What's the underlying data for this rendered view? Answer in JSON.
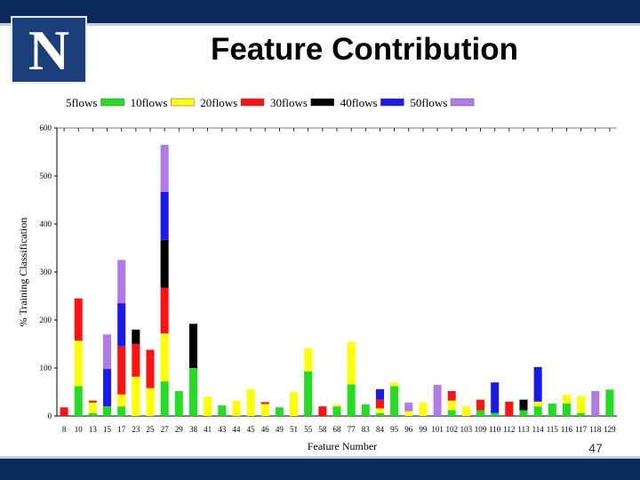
{
  "slide": {
    "title": "Feature Contribution",
    "logo_text": "N",
    "page_number": "47"
  },
  "colors": {
    "header_bar": "#0b2a5b",
    "logo_bg": "#1b3f7a"
  },
  "chart_data": {
    "type": "bar",
    "stacked": true,
    "xlabel": "Feature Number",
    "ylabel": "% Training Classification",
    "ylim": [
      0,
      600
    ],
    "yticks": [
      0,
      100,
      200,
      300,
      400,
      500,
      600
    ],
    "legend_position": "top",
    "categories": [
      "8",
      "10",
      "13",
      "15",
      "17",
      "23",
      "25",
      "27",
      "29",
      "38",
      "41",
      "43",
      "44",
      "45",
      "46",
      "49",
      "51",
      "55",
      "58",
      "68",
      "77",
      "83",
      "84",
      "95",
      "96",
      "99",
      "101",
      "102",
      "103",
      "109",
      "110",
      "112",
      "113",
      "114",
      "115",
      "116",
      "117",
      "118",
      "129"
    ],
    "series": [
      {
        "name": "5flows",
        "color": "#22dd22",
        "values": [
          0,
          62,
          6,
          20,
          20,
          0,
          0,
          72,
          52,
          100,
          0,
          22,
          0,
          0,
          0,
          18,
          0,
          93,
          0,
          20,
          66,
          24,
          6,
          62,
          0,
          0,
          0,
          12,
          0,
          12,
          6,
          0,
          12,
          20,
          26,
          26,
          6,
          0,
          55
        ]
      },
      {
        "name": "10flows",
        "color": "#ffff00",
        "values": [
          0,
          95,
          22,
          0,
          25,
          82,
          58,
          100,
          0,
          0,
          40,
          0,
          32,
          56,
          25,
          0,
          50,
          48,
          0,
          4,
          88,
          0,
          10,
          8,
          10,
          28,
          0,
          20,
          20,
          0,
          0,
          0,
          0,
          10,
          0,
          18,
          36,
          0,
          0
        ]
      },
      {
        "name": "20flows",
        "color": "#ff1111",
        "values": [
          18,
          88,
          4,
          0,
          100,
          68,
          80,
          95,
          0,
          0,
          0,
          0,
          0,
          0,
          4,
          0,
          0,
          0,
          20,
          0,
          0,
          0,
          18,
          0,
          0,
          0,
          0,
          20,
          0,
          22,
          0,
          30,
          0,
          0,
          0,
          0,
          0,
          0,
          0
        ]
      },
      {
        "name": "30flows",
        "color": "#000000",
        "values": [
          0,
          0,
          0,
          0,
          0,
          30,
          0,
          100,
          0,
          92,
          0,
          0,
          0,
          0,
          0,
          0,
          0,
          0,
          0,
          0,
          0,
          0,
          0,
          0,
          0,
          0,
          0,
          0,
          0,
          0,
          0,
          0,
          22,
          0,
          0,
          0,
          0,
          0,
          0
        ]
      },
      {
        "name": "40flows",
        "color": "#1a1aee",
        "values": [
          0,
          0,
          0,
          78,
          90,
          0,
          0,
          100,
          0,
          0,
          0,
          0,
          0,
          0,
          0,
          0,
          0,
          0,
          0,
          0,
          0,
          0,
          22,
          0,
          0,
          0,
          0,
          0,
          0,
          0,
          64,
          0,
          0,
          72,
          0,
          0,
          0,
          0,
          0
        ]
      },
      {
        "name": "50flows",
        "color": "#b07ae8",
        "values": [
          0,
          0,
          0,
          72,
          90,
          0,
          0,
          98,
          0,
          0,
          0,
          0,
          0,
          0,
          0,
          0,
          0,
          0,
          0,
          0,
          0,
          0,
          0,
          0,
          18,
          0,
          65,
          0,
          0,
          0,
          0,
          0,
          0,
          0,
          0,
          0,
          0,
          52,
          0
        ]
      }
    ]
  }
}
